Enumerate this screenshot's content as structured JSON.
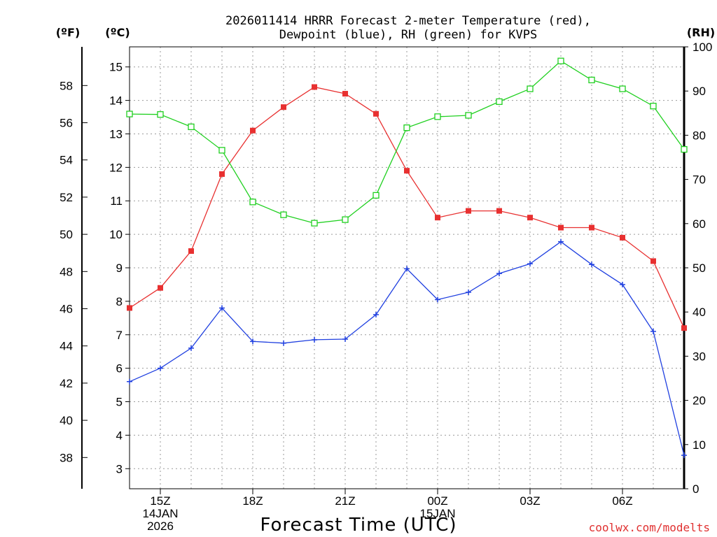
{
  "title_line1": "2026011414 HRRR Forecast 2-meter Temperature (red),",
  "title_line2": "Dewpoint (blue), RH (green) for KVPS",
  "units": {
    "fahrenheit": "(ºF)",
    "celsius": "(ºC)",
    "rh": "(RH)"
  },
  "x_axis": {
    "label": "Forecast Time (UTC)",
    "ticks": [
      {
        "hour": 15,
        "lines": [
          "15Z",
          "14JAN",
          "2026"
        ]
      },
      {
        "hour": 18,
        "lines": [
          "18Z"
        ]
      },
      {
        "hour": 21,
        "lines": [
          "21Z"
        ]
      },
      {
        "hour": 24,
        "lines": [
          "00Z",
          "15JAN"
        ]
      },
      {
        "hour": 27,
        "lines": [
          "03Z"
        ]
      },
      {
        "hour": 30,
        "lines": [
          "06Z"
        ]
      }
    ]
  },
  "credit": "coolwx.com/modelts",
  "colors": {
    "temperature": "#e83030",
    "dewpoint": "#2040e0",
    "rh": "#20d020",
    "grid": "#9a9a9a"
  },
  "chart_data": {
    "type": "line",
    "x_unit": "forecast hour (UTC, 14 Jan 2026 14Z = hour 14)",
    "x": [
      14,
      15,
      16,
      17,
      18,
      19,
      20,
      21,
      22,
      23,
      24,
      25,
      26,
      27,
      28,
      29,
      30,
      31,
      32
    ],
    "xlim": [
      14,
      32
    ],
    "y_left_celsius": {
      "lim": [
        2.4,
        15.6
      ],
      "ticks": [
        3,
        4,
        5,
        6,
        7,
        8,
        9,
        10,
        11,
        12,
        13,
        14,
        15
      ]
    },
    "y_left_fahrenheit": {
      "ticks": [
        38,
        40,
        42,
        44,
        46,
        48,
        50,
        52,
        54,
        56,
        58
      ]
    },
    "y_right_rh": {
      "lim": [
        0,
        100
      ],
      "ticks": [
        0,
        10,
        20,
        30,
        40,
        50,
        60,
        70,
        80,
        90,
        100
      ]
    },
    "series": [
      {
        "name": "Temperature",
        "axis": "celsius",
        "marker": "filled-square",
        "color": "#e83030",
        "values": [
          7.8,
          8.4,
          9.5,
          11.8,
          13.1,
          13.8,
          14.4,
          14.2,
          13.6,
          11.9,
          10.5,
          10.7,
          10.7,
          10.5,
          10.2,
          10.2,
          9.9,
          9.2,
          7.2
        ]
      },
      {
        "name": "Dewpoint",
        "axis": "celsius",
        "marker": "plus",
        "color": "#2040e0",
        "values": [
          5.6,
          6.0,
          6.6,
          7.8,
          6.8,
          6.75,
          6.85,
          6.87,
          7.6,
          8.97,
          8.05,
          8.27,
          8.83,
          9.12,
          9.78,
          9.1,
          8.5,
          7.1,
          3.4
        ]
      },
      {
        "name": "RH",
        "axis": "rh",
        "marker": "open-square",
        "color": "#20d020",
        "values": [
          84.8,
          84.7,
          81.9,
          76.6,
          64.9,
          62.0,
          60.1,
          60.9,
          66.4,
          81.7,
          84.2,
          84.5,
          87.6,
          90.5,
          96.8,
          92.5,
          90.5,
          86.6,
          76.8
        ]
      }
    ]
  }
}
